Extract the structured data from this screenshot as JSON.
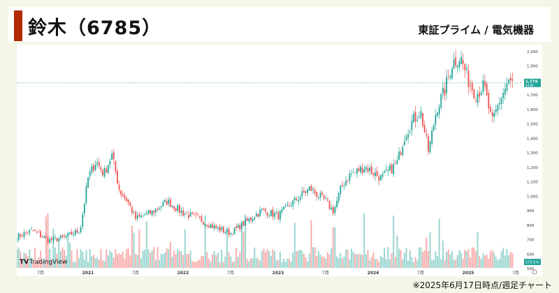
{
  "header": {
    "title": "鈴木（6785）",
    "subtitle": "東証プライム / 電気機器"
  },
  "footnote": "※2025年6月17日時点/週足チャート",
  "watermark": "TradingView",
  "colors": {
    "accent": "#b52a00",
    "up": "#26a69a",
    "down": "#ef5350",
    "background": "#f4f6e7"
  },
  "price_label": {
    "value": "1,779",
    "countdown": "5d 0h"
  },
  "volume_label": "173.5 K",
  "chart_data": {
    "type": "candlestick",
    "interval": "weekly",
    "ylim": [
      500,
      2000
    ],
    "y_ticks": [
      "500",
      "600",
      "700",
      "800",
      "900",
      "1,000",
      "1,100",
      "1,200",
      "1,300",
      "1,400",
      "1,500",
      "1,600",
      "1,700",
      "1,800",
      "1,900",
      "2,000"
    ],
    "x_ticks": [
      "7月",
      "2021",
      "7月",
      "2022",
      "7月",
      "2023",
      "7月",
      "2024",
      "7月",
      "2025",
      "7月"
    ],
    "x_range": [
      "2020-04",
      "2025-07"
    ],
    "last_close": 1779,
    "close_path": [
      {
        "date": "2020-04",
        "close": 715
      },
      {
        "date": "2020-06",
        "close": 760
      },
      {
        "date": "2020-08",
        "close": 690
      },
      {
        "date": "2020-10",
        "close": 710
      },
      {
        "date": "2020-12",
        "close": 760
      },
      {
        "date": "2021-01",
        "close": 1120
      },
      {
        "date": "2021-02",
        "close": 1240
      },
      {
        "date": "2021-03",
        "close": 1150
      },
      {
        "date": "2021-04",
        "close": 1280
      },
      {
        "date": "2021-05",
        "close": 1030
      },
      {
        "date": "2021-06",
        "close": 960
      },
      {
        "date": "2021-07",
        "close": 840
      },
      {
        "date": "2021-09",
        "close": 880
      },
      {
        "date": "2021-11",
        "close": 960
      },
      {
        "date": "2022-01",
        "close": 880
      },
      {
        "date": "2022-03",
        "close": 840
      },
      {
        "date": "2022-05",
        "close": 780
      },
      {
        "date": "2022-07",
        "close": 740
      },
      {
        "date": "2022-09",
        "close": 820
      },
      {
        "date": "2022-11",
        "close": 900
      },
      {
        "date": "2023-01",
        "close": 860
      },
      {
        "date": "2023-03",
        "close": 960
      },
      {
        "date": "2023-05",
        "close": 1050
      },
      {
        "date": "2023-07",
        "close": 960
      },
      {
        "date": "2023-08",
        "close": 890
      },
      {
        "date": "2023-09",
        "close": 1060
      },
      {
        "date": "2023-10",
        "close": 1140
      },
      {
        "date": "2023-12",
        "close": 1200
      },
      {
        "date": "2024-02",
        "close": 1120
      },
      {
        "date": "2024-04",
        "close": 1220
      },
      {
        "date": "2024-05",
        "close": 1420
      },
      {
        "date": "2024-06",
        "close": 1520
      },
      {
        "date": "2024-07",
        "close": 1580
      },
      {
        "date": "2024-08",
        "close": 1300
      },
      {
        "date": "2024-09",
        "close": 1600
      },
      {
        "date": "2024-10",
        "close": 1720
      },
      {
        "date": "2024-11",
        "close": 1920
      },
      {
        "date": "2024-12",
        "close": 1960
      },
      {
        "date": "2025-01",
        "close": 1800
      },
      {
        "date": "2025-02",
        "close": 1700
      },
      {
        "date": "2025-03",
        "close": 1760
      },
      {
        "date": "2025-04",
        "close": 1500
      },
      {
        "date": "2025-05",
        "close": 1660
      },
      {
        "date": "2025-06",
        "close": 1779
      }
    ]
  }
}
